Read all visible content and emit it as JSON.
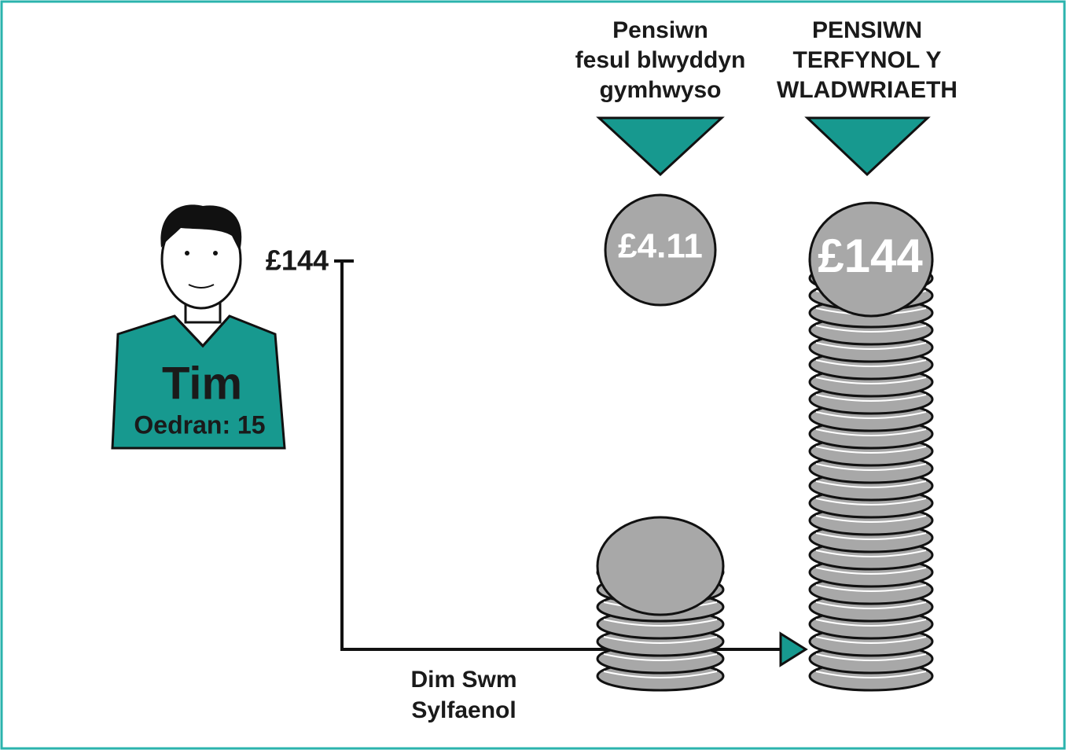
{
  "person": {
    "name": "Tim",
    "age": "Oedran: 15",
    "amount": "£144"
  },
  "headers": [
    {
      "lines": [
        "Pensiwn",
        "fesul blwyddyn",
        "gymhwyso"
      ]
    },
    {
      "lines": [
        "PENSIWN",
        "TERFYNOL Y",
        "WLADWRIAETH"
      ]
    }
  ],
  "coins": {
    "per_year": "£4.11",
    "final": "£144"
  },
  "lump_sum": {
    "lines": [
      "Dim Swm",
      "Sylfaenol"
    ]
  }
}
